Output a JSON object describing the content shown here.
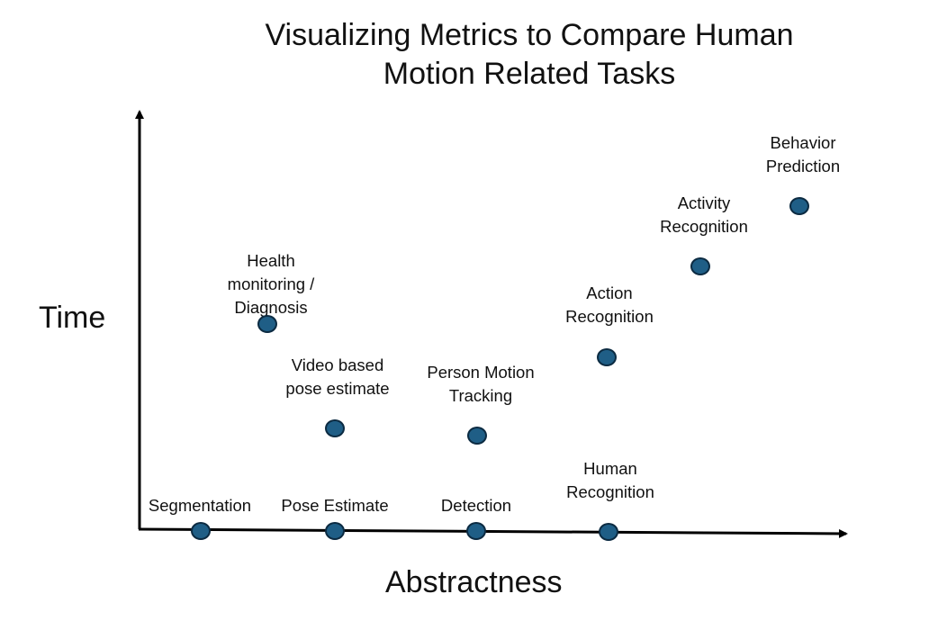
{
  "title": {
    "line1": "Visualizing Metrics to Compare Human",
    "line2": "Motion Related Tasks"
  },
  "axes": {
    "y_label": "Time",
    "x_label": "Abstractness"
  },
  "points": [
    {
      "id": "segmentation",
      "label_lines": [
        "Segmentation"
      ]
    },
    {
      "id": "pose-estimate",
      "label_lines": [
        "Pose Estimate"
      ]
    },
    {
      "id": "detection",
      "label_lines": [
        "Detection"
      ]
    },
    {
      "id": "human-recognition",
      "label_lines": [
        "Human",
        "Recognition"
      ]
    },
    {
      "id": "health-monitoring",
      "label_lines": [
        "Health",
        "monitoring /",
        "Diagnosis"
      ]
    },
    {
      "id": "video-pose",
      "label_lines": [
        "Video based",
        "pose estimate"
      ]
    },
    {
      "id": "person-tracking",
      "label_lines": [
        "Person Motion",
        "Tracking"
      ]
    },
    {
      "id": "action-recognition",
      "label_lines": [
        "Action",
        "Recognition"
      ]
    },
    {
      "id": "activity-recognition",
      "label_lines": [
        "Activity",
        "Recognition"
      ]
    },
    {
      "id": "behavior-prediction",
      "label_lines": [
        "Behavior",
        "Prediction"
      ]
    }
  ],
  "colors": {
    "dot_fill": "#1f5e86",
    "dot_stroke": "#0c2b42",
    "axis": "#000000"
  }
}
